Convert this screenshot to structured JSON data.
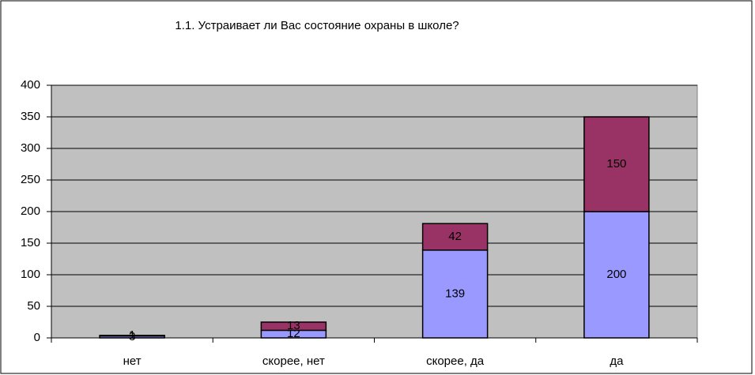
{
  "chart_data": {
    "type": "stacked_bar",
    "title": "1.1. Устраивает ли Вас состояние охраны в школе?",
    "categories": [
      "нет",
      "скорее, нет",
      "скорее, да",
      "да"
    ],
    "series": [
      {
        "color": "#9999ff",
        "values": [
          3,
          12,
          139,
          200
        ]
      },
      {
        "color": "#993366",
        "values": [
          1,
          13,
          42,
          150
        ]
      }
    ],
    "ylim": [
      0,
      400
    ],
    "yticks": [
      0,
      50,
      100,
      150,
      200,
      250,
      300,
      350,
      400
    ],
    "grid": true
  }
}
